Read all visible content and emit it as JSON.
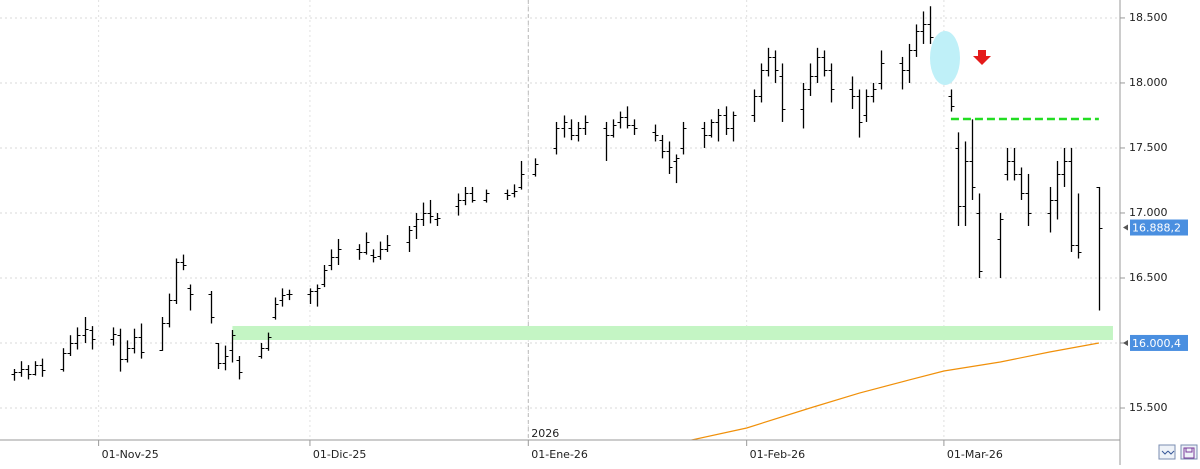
{
  "chart_data": {
    "type": "ohlc",
    "color": "#000000",
    "x": [
      "2025-10-20",
      "2025-10-21",
      "2025-10-22",
      "2025-10-23",
      "2025-10-24",
      "2025-10-27",
      "2025-10-28",
      "2025-10-29",
      "2025-10-30",
      "2025-10-31",
      "2025-11-03",
      "2025-11-04",
      "2025-11-05",
      "2025-11-06",
      "2025-11-07",
      "2025-11-10",
      "2025-11-11",
      "2025-11-12",
      "2025-11-13",
      "2025-11-14",
      "2025-11-17",
      "2025-11-18",
      "2025-11-19",
      "2025-11-20",
      "2025-11-21",
      "2025-11-24",
      "2025-11-25",
      "2025-11-26",
      "2025-11-27",
      "2025-11-28",
      "2025-12-01",
      "2025-12-02",
      "2025-12-03",
      "2025-12-04",
      "2025-12-05",
      "2025-12-08",
      "2025-12-09",
      "2025-12-10",
      "2025-12-11",
      "2025-12-12",
      "2025-12-15",
      "2025-12-16",
      "2025-12-17",
      "2025-12-18",
      "2025-12-19",
      "2025-12-22",
      "2025-12-23",
      "2025-12-24",
      "2025-12-26",
      "2025-12-29",
      "2025-12-30",
      "2025-12-31",
      "2026-01-02",
      "2026-01-05",
      "2026-01-06",
      "2026-01-07",
      "2026-01-08",
      "2026-01-09",
      "2026-01-12",
      "2026-01-13",
      "2026-01-14",
      "2026-01-15",
      "2026-01-16",
      "2026-01-19",
      "2026-01-20",
      "2026-01-21",
      "2026-01-22",
      "2026-01-23",
      "2026-01-26",
      "2026-01-27",
      "2026-01-28",
      "2026-01-29",
      "2026-01-30",
      "2026-02-02",
      "2026-02-03",
      "2026-02-04",
      "2026-02-05",
      "2026-02-06",
      "2026-02-09",
      "2026-02-10",
      "2026-02-11",
      "2026-02-12",
      "2026-02-13",
      "2026-02-16",
      "2026-02-17",
      "2026-02-18",
      "2026-02-19",
      "2026-02-20",
      "2026-02-23",
      "2026-02-24",
      "2026-02-25",
      "2026-02-26",
      "2026-02-27",
      "2026-03-02",
      "2026-03-03",
      "2026-03-04",
      "2026-03-05",
      "2026-03-06",
      "2026-03-09",
      "2026-03-10",
      "2026-03-11",
      "2026-03-12",
      "2026-03-13",
      "2026-03-16",
      "2026-03-17",
      "2026-03-18",
      "2026-03-19",
      "2026-03-20",
      "2026-03-23"
    ],
    "open": [
      15760,
      15780,
      15800,
      15760,
      15830,
      15800,
      15920,
      16000,
      16060,
      16100,
      16030,
      16060,
      15880,
      15960,
      16050,
      15950,
      16150,
      16330,
      16620,
      16420,
      16380,
      16000,
      15850,
      15950,
      15870,
      15900,
      15960,
      16200,
      16330,
      16380,
      16380,
      16400,
      16450,
      16600,
      16660,
      16720,
      16700,
      16680,
      16670,
      16720,
      16780,
      16900,
      16950,
      17000,
      16950,
      17050,
      17100,
      17150,
      17100,
      17150,
      17150,
      17200,
      17300,
      17500,
      17650,
      17650,
      17600,
      17650,
      17650,
      17600,
      17700,
      17740,
      17680,
      17620,
      17560,
      17480,
      17400,
      17500,
      17650,
      17600,
      17700,
      17750,
      17650,
      17750,
      17900,
      18100,
      18200,
      18050,
      17800,
      17950,
      18050,
      18200,
      18100,
      17950,
      17900,
      17750,
      17900,
      18000,
      18150,
      18100,
      18250,
      18400,
      18450,
      17900,
      17500,
      17050,
      17400,
      17000,
      16800,
      17300,
      17400,
      17300,
      17150,
      17000,
      17100,
      17300,
      17400,
      16750,
      17200
    ],
    "high": [
      15800,
      15860,
      15830,
      15860,
      15880,
      15960,
      16060,
      16120,
      16200,
      16130,
      16120,
      16110,
      16020,
      16110,
      16150,
      16200,
      16380,
      16650,
      16680,
      16450,
      16400,
      16000,
      15980,
      16100,
      15900,
      16000,
      16080,
      16350,
      16420,
      16410,
      16420,
      16450,
      16600,
      16720,
      16800,
      16760,
      16850,
      16720,
      16780,
      16830,
      16900,
      17000,
      17080,
      17100,
      17000,
      17150,
      17200,
      17200,
      17180,
      17180,
      17220,
      17400,
      17420,
      17700,
      17750,
      17720,
      17700,
      17750,
      17700,
      17720,
      17780,
      17820,
      17720,
      17680,
      17600,
      17550,
      17450,
      17700,
      17700,
      17720,
      17800,
      17820,
      17780,
      17950,
      18150,
      18270,
      18250,
      18150,
      18000,
      18150,
      18270,
      18250,
      18150,
      18050,
      17950,
      17950,
      18000,
      18250,
      18200,
      18300,
      18450,
      18550,
      18590,
      17950,
      17620,
      17550,
      17720,
      17150,
      17000,
      17500,
      17500,
      17350,
      17300,
      17200,
      17400,
      17500,
      17500,
      17150,
      17200
    ],
    "low": [
      15710,
      15740,
      15720,
      15750,
      15740,
      15780,
      15900,
      15950,
      16000,
      15950,
      15980,
      15780,
      15850,
      15920,
      15880,
      15940,
      16120,
      16300,
      16560,
      16250,
      16150,
      15800,
      15790,
      15850,
      15720,
      15880,
      15940,
      16180,
      16280,
      16330,
      16300,
      16280,
      16430,
      16560,
      16600,
      16640,
      16680,
      16620,
      16640,
      16700,
      16700,
      16800,
      16900,
      16920,
      16900,
      16980,
      17060,
      17080,
      17080,
      17100,
      17120,
      17180,
      17280,
      17450,
      17580,
      17560,
      17550,
      17600,
      17400,
      17580,
      17650,
      17650,
      17600,
      17550,
      17420,
      17300,
      17230,
      17450,
      17500,
      17580,
      17550,
      17600,
      17550,
      17700,
      17850,
      18050,
      18000,
      17700,
      17650,
      17900,
      18000,
      18050,
      17850,
      17800,
      17580,
      17700,
      17850,
      17950,
      17950,
      18000,
      18200,
      18300,
      18300,
      17780,
      16900,
      16900,
      17100,
      16500,
      16500,
      17250,
      17250,
      17100,
      16900,
      16850,
      16950,
      17200,
      16700,
      16650,
      16250
    ],
    "close": [
      15780,
      15800,
      15760,
      15830,
      15790,
      15920,
      16000,
      16060,
      16110,
      16030,
      16070,
      15880,
      15960,
      16050,
      15930,
      16150,
      16330,
      16620,
      16600,
      16380,
      16200,
      15850,
      15900,
      16060,
      15780,
      15960,
      16050,
      16300,
      16370,
      16380,
      16400,
      16420,
      16560,
      16660,
      16720,
      16700,
      16780,
      16660,
      16720,
      16750,
      16870,
      16950,
      17000,
      16980,
      16960,
      17100,
      17150,
      17100,
      17150,
      17140,
      17170,
      17300,
      17380,
      17650,
      17700,
      17600,
      17650,
      17700,
      17600,
      17680,
      17740,
      17680,
      17650,
      17600,
      17480,
      17350,
      17420,
      17650,
      17600,
      17700,
      17750,
      17650,
      17750,
      17900,
      18100,
      18200,
      18100,
      17800,
      17950,
      18050,
      18200,
      18100,
      17950,
      17900,
      17700,
      17900,
      17950,
      18150,
      18100,
      18250,
      18400,
      18450,
      18350,
      17820,
      17050,
      17400,
      17200,
      16550,
      16950,
      17400,
      17300,
      17150,
      17000,
      17100,
      17300,
      17400,
      16750,
      16700,
      16888.2
    ],
    "xlim": [
      "2025-10-18",
      "2026-03-26"
    ],
    "ylim": [
      15254,
      18638
    ],
    "yticks": [
      {
        "value": 15500,
        "label": "15.500"
      },
      {
        "value": 16000,
        "label": "16.000"
      },
      {
        "value": 16500,
        "label": "16.500"
      },
      {
        "value": 17000,
        "label": "17.000"
      },
      {
        "value": 17500,
        "label": "17.500"
      },
      {
        "value": 18000,
        "label": "18.000"
      },
      {
        "value": 18500,
        "label": "18.500"
      }
    ],
    "xticks": [
      {
        "value": "2025-11-01",
        "label": "01-Nov-25"
      },
      {
        "value": "2025-12-01",
        "label": "01-Dic-25"
      },
      {
        "value": "2026-01-01",
        "label": "01-Ene-26"
      },
      {
        "value": "2026-02-01",
        "label": "01-Feb-26"
      },
      {
        "value": "2026-03-01",
        "label": "01-Mar-26"
      }
    ],
    "grid": true,
    "year_marker": {
      "value": "2026-01-01",
      "label": "2026"
    },
    "last_label": {
      "value": 16888.2,
      "label": "16.888,2"
    },
    "moving_average": {
      "color": "#f0900a",
      "x": [
        "2026-01-23",
        "2026-02-01",
        "2026-02-10",
        "2026-02-17",
        "2026-02-24",
        "2026-03-01",
        "2026-03-09",
        "2026-03-16",
        "2026-03-23"
      ],
      "values": [
        15240,
        15346,
        15500,
        15615,
        15715,
        15785,
        15854,
        15931,
        16000.4
      ],
      "last_label": {
        "value": 16000.4,
        "label": "16.000,4"
      }
    },
    "support_band": {
      "color": "#c4f5c4",
      "x": [
        "2025-11-20",
        "2026-03-25"
      ],
      "y": [
        16023,
        16131
      ]
    },
    "resistance_line": {
      "color": "#22dd22",
      "x": [
        "2026-03-02",
        "2026-03-23"
      ],
      "value": 17723
    }
  }
}
